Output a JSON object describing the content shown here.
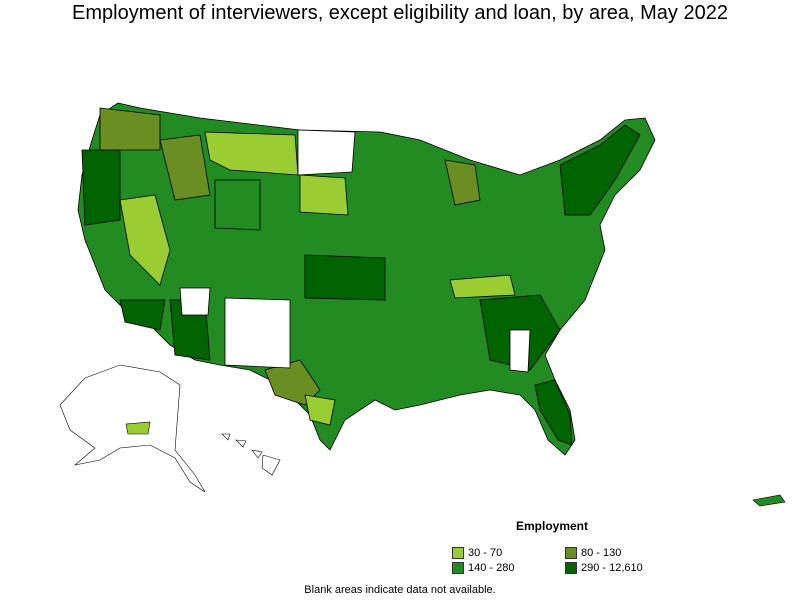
{
  "title": "Employment of interviewers, except eligibility and loan, by area, May 2022",
  "legend": {
    "title": "Employment",
    "items": [
      {
        "label": "30 - 70",
        "color": "#9acd32"
      },
      {
        "label": "80 - 130",
        "color": "#6b8e23"
      },
      {
        "label": "140 - 280",
        "color": "#228b22"
      },
      {
        "label": "290 - 12,610",
        "color": "#006400"
      }
    ]
  },
  "note": "Blank areas indicate data not available.",
  "colors": {
    "border": "#000000",
    "no_data": "#ffffff"
  }
}
